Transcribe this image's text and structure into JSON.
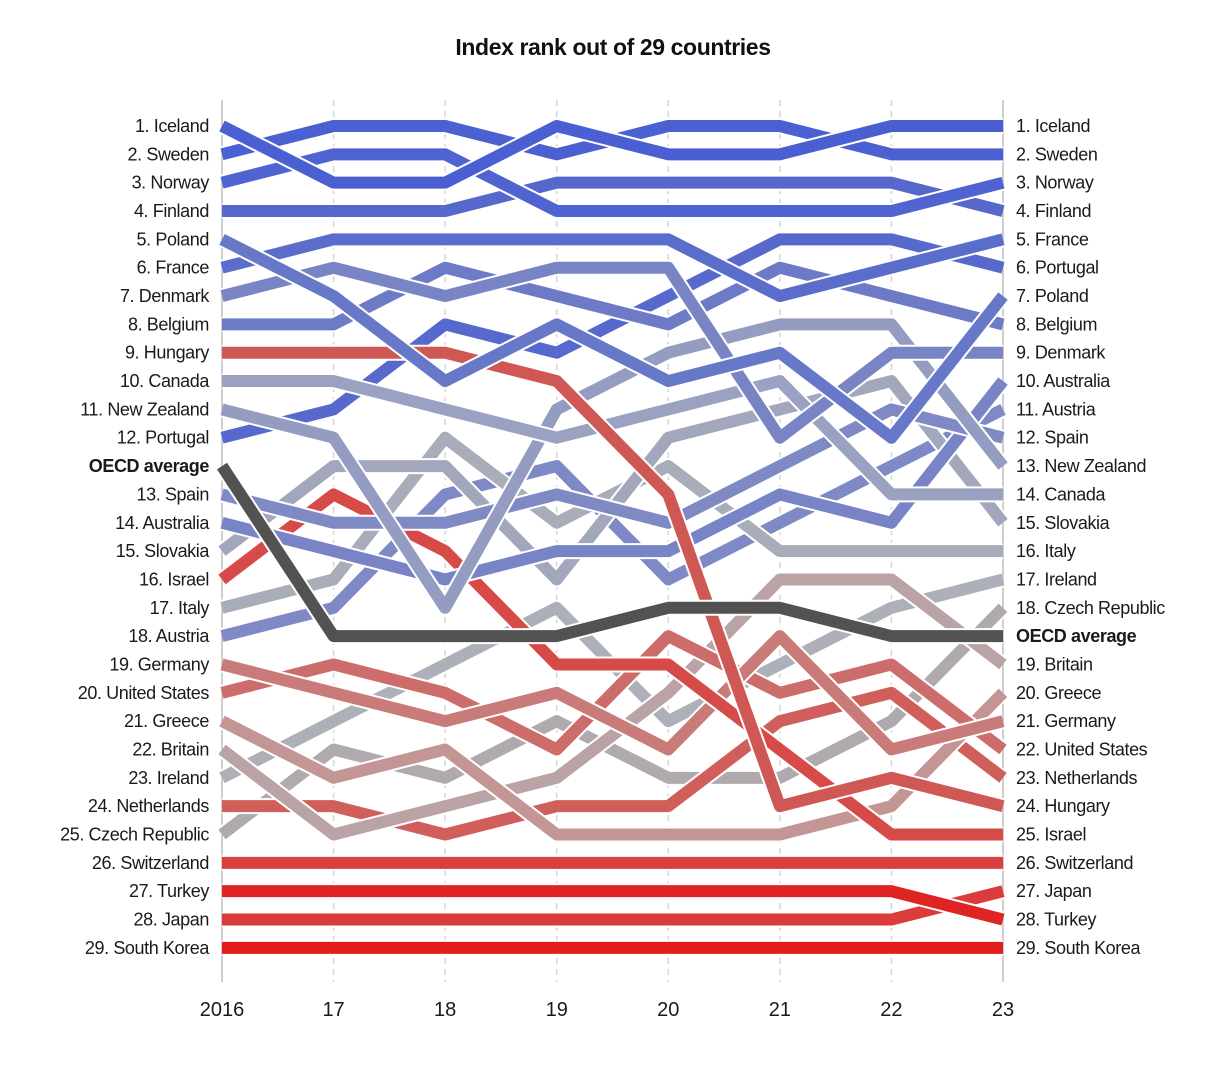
{
  "chart_data": {
    "type": "line",
    "subtype": "bump",
    "title": "Index rank out of 29 countries",
    "x_tick_labels": [
      "2016",
      "17",
      "18",
      "19",
      "20",
      "21",
      "22",
      "23"
    ],
    "x": [
      2016,
      2017,
      2018,
      2019,
      2020,
      2021,
      2022,
      2023
    ],
    "y_axis": "rank (1 = top)",
    "left_labels": [
      "1. Iceland",
      "2. Sweden",
      "3. Norway",
      "4. Finland",
      "5. Poland",
      "6. France",
      "7. Denmark",
      "8. Belgium",
      "9. Hungary",
      "10. Canada",
      "11. New Zealand",
      "12. Portugal",
      "OECD average",
      "13. Spain",
      "14. Australia",
      "15. Slovakia",
      "16. Israel",
      "17. Italy",
      "18. Austria",
      "19. Germany",
      "20. United States",
      "21. Greece",
      "22. Britain",
      "23. Ireland",
      "24. Netherlands",
      "25. Czech Republic",
      "26. Switzerland",
      "27. Turkey",
      "28. Japan",
      "29. South Korea"
    ],
    "right_labels": [
      "1. Iceland",
      "2. Sweden",
      "3. Norway",
      "4. Finland",
      "5. France",
      "6. Portugal",
      "7. Poland",
      "8. Belgium",
      "9. Denmark",
      "10. Australia",
      "11. Austria",
      "12. Spain",
      "13. New Zealand",
      "14. Canada",
      "15. Slovakia",
      "16. Italy",
      "17. Ireland",
      "18. Czech Republic",
      "OECD average",
      "19. Britain",
      "20. Greece",
      "21. Germany",
      "22. United States",
      "23. Netherlands",
      "24. Hungary",
      "25. Israel",
      "26. Switzerland",
      "27. Japan",
      "28. Turkey",
      "29. South Korea"
    ],
    "oecd_average": {
      "name": "OECD average",
      "position_between_ranks": [
        12.5,
        18.5,
        18.5,
        18.5,
        17.5,
        17.5,
        18.5,
        18.5
      ],
      "color": "#525252"
    },
    "series": [
      {
        "name": "Iceland",
        "color": "#4a5fd2",
        "ranks": [
          1,
          3,
          3,
          1,
          2,
          2,
          1,
          1
        ]
      },
      {
        "name": "Sweden",
        "color": "#4c61d1",
        "ranks": [
          2,
          1,
          1,
          2,
          1,
          1,
          2,
          2
        ]
      },
      {
        "name": "Norway",
        "color": "#4f64d0",
        "ranks": [
          3,
          2,
          2,
          4,
          4,
          4,
          4,
          3
        ]
      },
      {
        "name": "Finland",
        "color": "#5668cc",
        "ranks": [
          4,
          4,
          4,
          3,
          3,
          3,
          3,
          4
        ]
      },
      {
        "name": "Poland",
        "color": "#6878c8",
        "ranks": [
          5,
          7,
          10,
          8,
          10,
          9,
          12,
          7
        ]
      },
      {
        "name": "France",
        "color": "#5b6dcb",
        "ranks": [
          6,
          5,
          5,
          5,
          5,
          7,
          6,
          5
        ]
      },
      {
        "name": "Denmark",
        "color": "#7884c3",
        "ranks": [
          7,
          6,
          7,
          6,
          6,
          12,
          9,
          9
        ]
      },
      {
        "name": "Belgium",
        "color": "#6d7bc7",
        "ranks": [
          8,
          8,
          6,
          7,
          8,
          6,
          7,
          8
        ]
      },
      {
        "name": "Hungary",
        "color": "#cf5855",
        "ranks": [
          9,
          9,
          9,
          10,
          14,
          24,
          23,
          24
        ]
      },
      {
        "name": "Canada",
        "color": "#9ba1c0",
        "ranks": [
          10,
          10,
          11,
          12,
          11,
          10,
          14,
          14
        ]
      },
      {
        "name": "New Zealand",
        "color": "#959cc1",
        "ranks": [
          11,
          12,
          18,
          11,
          9,
          8,
          8,
          13
        ]
      },
      {
        "name": "Portugal",
        "color": "#5769cc",
        "ranks": [
          12,
          11,
          8,
          9,
          7,
          5,
          5,
          6
        ]
      },
      {
        "name": "Spain",
        "color": "#7f8ac4",
        "ranks": [
          13,
          15,
          15,
          14,
          15,
          13,
          11,
          12
        ]
      },
      {
        "name": "Australia",
        "color": "#7884c6",
        "ranks": [
          14,
          16,
          17,
          16,
          16,
          14,
          15,
          10
        ]
      },
      {
        "name": "Slovakia",
        "color": "#a3a7bc",
        "ranks": [
          15,
          13,
          13,
          17,
          12,
          11,
          10,
          15
        ]
      },
      {
        "name": "Israel",
        "color": "#d64a47",
        "ranks": [
          16,
          14,
          16,
          19,
          19,
          22,
          25,
          25
        ]
      },
      {
        "name": "Italy",
        "color": "#a9acb9",
        "ranks": [
          17,
          17,
          12,
          15,
          13,
          16,
          16,
          16
        ]
      },
      {
        "name": "Austria",
        "color": "#7e89c5",
        "ranks": [
          18,
          18,
          14,
          13,
          17,
          15,
          13,
          11
        ]
      },
      {
        "name": "Germany",
        "color": "#c97b79",
        "ranks": [
          19,
          20,
          21,
          20,
          22,
          18,
          22,
          21
        ]
      },
      {
        "name": "United States",
        "color": "#cd6d6b",
        "ranks": [
          20,
          19,
          20,
          22,
          18,
          20,
          19,
          22
        ]
      },
      {
        "name": "Greece",
        "color": "#c49595",
        "ranks": [
          21,
          23,
          22,
          25,
          25,
          25,
          24,
          20
        ]
      },
      {
        "name": "Britain",
        "color": "#b9a3a4",
        "ranks": [
          22,
          25,
          24,
          23,
          20,
          17,
          17,
          19
        ]
      },
      {
        "name": "Ireland",
        "color": "#aeb0b9",
        "ranks": [
          23,
          21,
          19,
          18,
          21,
          19,
          18,
          17
        ]
      },
      {
        "name": "Netherlands",
        "color": "#d05e5b",
        "ranks": [
          24,
          24,
          25,
          24,
          24,
          21,
          20,
          23
        ]
      },
      {
        "name": "Czech Republic",
        "color": "#b0a9ae",
        "ranks": [
          25,
          22,
          23,
          21,
          23,
          23,
          21,
          18
        ]
      },
      {
        "name": "Switzerland",
        "color": "#d83f3d",
        "ranks": [
          26,
          26,
          26,
          26,
          26,
          26,
          26,
          26
        ]
      },
      {
        "name": "Turkey",
        "color": "#e02424",
        "ranks": [
          27,
          27,
          27,
          27,
          27,
          27,
          27,
          28
        ]
      },
      {
        "name": "Japan",
        "color": "#db3b3a",
        "ranks": [
          28,
          28,
          28,
          28,
          28,
          28,
          28,
          27
        ]
      },
      {
        "name": "South Korea",
        "color": "#e21d1d",
        "ranks": [
          29,
          29,
          29,
          29,
          29,
          29,
          29,
          29
        ]
      }
    ],
    "grid": "vertical dashed at each year",
    "legend": "none (direct labels left and right)"
  }
}
